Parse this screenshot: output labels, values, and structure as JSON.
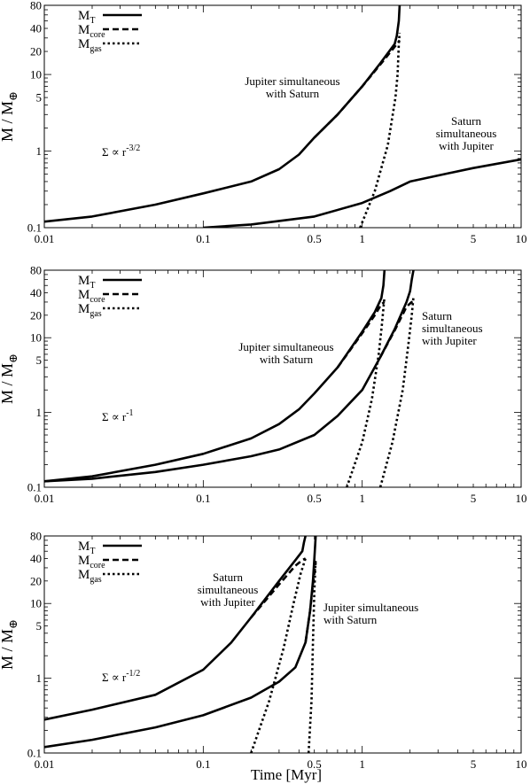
{
  "figure": {
    "ylabel_main": "M / M",
    "ylabel_sym": "⊕",
    "xlabel": "Time [Myr]"
  },
  "chart_data": [
    {
      "type": "line",
      "panel_label": "top",
      "xscale": "log",
      "yscale": "log",
      "xlim": [
        0.01,
        10
      ],
      "ylim": [
        0.1,
        80
      ],
      "xticks": [
        "0.01",
        "0.1",
        "0.5",
        "1",
        "5",
        "10"
      ],
      "yticks": [
        "0.1",
        "1",
        "5",
        "10",
        "20",
        "40",
        "80"
      ],
      "legend": {
        "placement": "top-left",
        "entries": [
          {
            "main": "M",
            "sub": "T",
            "style": "solid"
          },
          {
            "main": "M",
            "sub": "core",
            "style": "dashed"
          },
          {
            "main": "M",
            "sub": "gas",
            "style": "dotted"
          }
        ]
      },
      "sigma": {
        "text": "Σ ∝ r",
        "exp": "-3/2"
      },
      "annotations": [
        {
          "lines": [
            "Jupiter simultaneous",
            "with Saturn"
          ]
        },
        {
          "lines": [
            "Saturn",
            "simultaneous",
            "with Jupiter"
          ]
        }
      ],
      "series": [
        {
          "name": "Jupiter simultaneous with Saturn",
          "style": "solid",
          "x": [
            0.01,
            0.02,
            0.05,
            0.1,
            0.2,
            0.3,
            0.4,
            0.5,
            0.7,
            1.0,
            1.3,
            1.6,
            1.65,
            1.7,
            1.72
          ],
          "y": [
            0.12,
            0.14,
            0.2,
            0.28,
            0.4,
            0.58,
            0.9,
            1.5,
            3.0,
            7.0,
            14,
            25,
            32,
            50,
            80
          ]
        },
        {
          "style": "dashed",
          "x": [
            0.5,
            0.7,
            1.0,
            1.3,
            1.6,
            1.68,
            1.72
          ],
          "y": [
            1.5,
            3.0,
            7.0,
            13.5,
            23,
            26,
            28
          ]
        },
        {
          "style": "dotted",
          "x": [
            0.97,
            1.2,
            1.45,
            1.62,
            1.67,
            1.7,
            1.72
          ],
          "y": [
            0.1,
            0.3,
            1.2,
            5,
            10,
            25,
            35
          ]
        },
        {
          "name": "Saturn simultaneous with Jupiter",
          "style": "solid",
          "x": [
            0.1,
            0.2,
            0.5,
            1.0,
            1.5,
            2.0,
            3.0,
            5.0,
            10.0
          ],
          "y": [
            0.1,
            0.11,
            0.14,
            0.21,
            0.3,
            0.4,
            0.48,
            0.6,
            0.78
          ]
        }
      ]
    },
    {
      "type": "line",
      "panel_label": "middle",
      "xscale": "log",
      "yscale": "log",
      "xlim": [
        0.01,
        10
      ],
      "ylim": [
        0.1,
        80
      ],
      "xticks": [
        "0.01",
        "0.1",
        "0.5",
        "1",
        "5",
        "10"
      ],
      "yticks": [
        "0.1",
        "1",
        "5",
        "10",
        "20",
        "40",
        "80"
      ],
      "legend": {
        "placement": "top-left",
        "entries": [
          {
            "main": "M",
            "sub": "T",
            "style": "solid"
          },
          {
            "main": "M",
            "sub": "core",
            "style": "dashed"
          },
          {
            "main": "M",
            "sub": "gas",
            "style": "dotted"
          }
        ]
      },
      "sigma": {
        "text": "Σ ∝ r",
        "exp": "-1"
      },
      "annotations": [
        {
          "lines": [
            "Jupiter simultaneous",
            "with Saturn"
          ]
        },
        {
          "lines": [
            "Saturn",
            "simultaneous",
            "with Jupiter"
          ]
        }
      ],
      "series": [
        {
          "name": "Jupiter simultaneous with Saturn",
          "style": "solid",
          "x": [
            0.01,
            0.02,
            0.05,
            0.1,
            0.2,
            0.3,
            0.4,
            0.5,
            0.7,
            1.0,
            1.2,
            1.32,
            1.36,
            1.38
          ],
          "y": [
            0.12,
            0.14,
            0.2,
            0.28,
            0.45,
            0.7,
            1.1,
            1.8,
            4.0,
            12,
            22,
            34,
            50,
            80
          ]
        },
        {
          "style": "dashed",
          "x": [
            0.7,
            1.0,
            1.2,
            1.32,
            1.38
          ],
          "y": [
            4.0,
            11.5,
            20,
            28,
            30
          ]
        },
        {
          "style": "dotted",
          "x": [
            0.8,
            1.0,
            1.15,
            1.27,
            1.33,
            1.38
          ],
          "y": [
            0.1,
            0.4,
            1.5,
            6,
            15,
            35
          ]
        },
        {
          "name": "Saturn simultaneous with Jupiter",
          "style": "solid",
          "x": [
            0.01,
            0.02,
            0.05,
            0.1,
            0.2,
            0.3,
            0.5,
            0.7,
            1.0,
            1.3,
            1.6,
            1.9,
            2.0,
            2.05,
            2.1
          ],
          "y": [
            0.12,
            0.13,
            0.16,
            0.2,
            0.26,
            0.32,
            0.5,
            0.9,
            2.0,
            5.5,
            13,
            30,
            42,
            60,
            80
          ]
        },
        {
          "style": "dashed",
          "x": [
            1.3,
            1.6,
            1.9,
            2.05,
            2.1
          ],
          "y": [
            5.5,
            12.5,
            26,
            30,
            32
          ]
        },
        {
          "style": "dotted",
          "x": [
            1.3,
            1.55,
            1.8,
            1.95,
            2.05,
            2.1
          ],
          "y": [
            0.1,
            0.4,
            2.0,
            8,
            20,
            35
          ]
        }
      ]
    },
    {
      "type": "line",
      "panel_label": "bottom",
      "xscale": "log",
      "yscale": "log",
      "xlim": [
        0.01,
        10
      ],
      "ylim": [
        0.1,
        80
      ],
      "xticks": [
        "0.01",
        "0.1",
        "0.5",
        "1",
        "5",
        "10"
      ],
      "yticks": [
        "0.1",
        "1",
        "5",
        "10",
        "20",
        "40",
        "80"
      ],
      "legend": {
        "placement": "top-left",
        "entries": [
          {
            "main": "M",
            "sub": "T",
            "style": "solid"
          },
          {
            "main": "M",
            "sub": "core",
            "style": "dashed"
          },
          {
            "main": "M",
            "sub": "gas",
            "style": "dotted"
          }
        ]
      },
      "sigma": {
        "text": "Σ ∝ r",
        "exp": "-1/2"
      },
      "annotations": [
        {
          "lines": [
            "Saturn",
            "simultaneous",
            "with Jupiter"
          ]
        },
        {
          "lines": [
            "Jupiter simultaneous",
            "with Saturn"
          ]
        }
      ],
      "series": [
        {
          "name": "Saturn simultaneous with Jupiter",
          "style": "solid",
          "x": [
            0.01,
            0.02,
            0.05,
            0.1,
            0.15,
            0.2,
            0.3,
            0.38,
            0.42,
            0.43,
            0.44
          ],
          "y": [
            0.28,
            0.38,
            0.6,
            1.3,
            3.0,
            6.5,
            20,
            38,
            50,
            65,
            80
          ]
        },
        {
          "style": "dashed",
          "x": [
            0.2,
            0.3,
            0.38,
            0.42,
            0.44
          ],
          "y": [
            6.5,
            18,
            32,
            38,
            40
          ]
        },
        {
          "style": "dotted",
          "x": [
            0.2,
            0.26,
            0.32,
            0.37,
            0.41,
            0.44
          ],
          "y": [
            0.1,
            0.5,
            2.5,
            10,
            25,
            40
          ]
        },
        {
          "name": "Jupiter simultaneous with Saturn",
          "style": "solid",
          "x": [
            0.01,
            0.02,
            0.05,
            0.1,
            0.2,
            0.3,
            0.38,
            0.44,
            0.47,
            0.49,
            0.5,
            0.51
          ],
          "y": [
            0.12,
            0.15,
            0.22,
            0.32,
            0.55,
            0.9,
            1.4,
            3.0,
            8.0,
            20,
            40,
            80
          ]
        },
        {
          "style": "dashed",
          "x": [
            0.44,
            0.47,
            0.49,
            0.51
          ],
          "y": [
            3.0,
            8.0,
            18,
            35
          ]
        },
        {
          "style": "dotted",
          "x": [
            0.46,
            0.48,
            0.49,
            0.5,
            0.51
          ],
          "y": [
            0.1,
            0.5,
            3,
            15,
            40
          ]
        }
      ]
    }
  ]
}
